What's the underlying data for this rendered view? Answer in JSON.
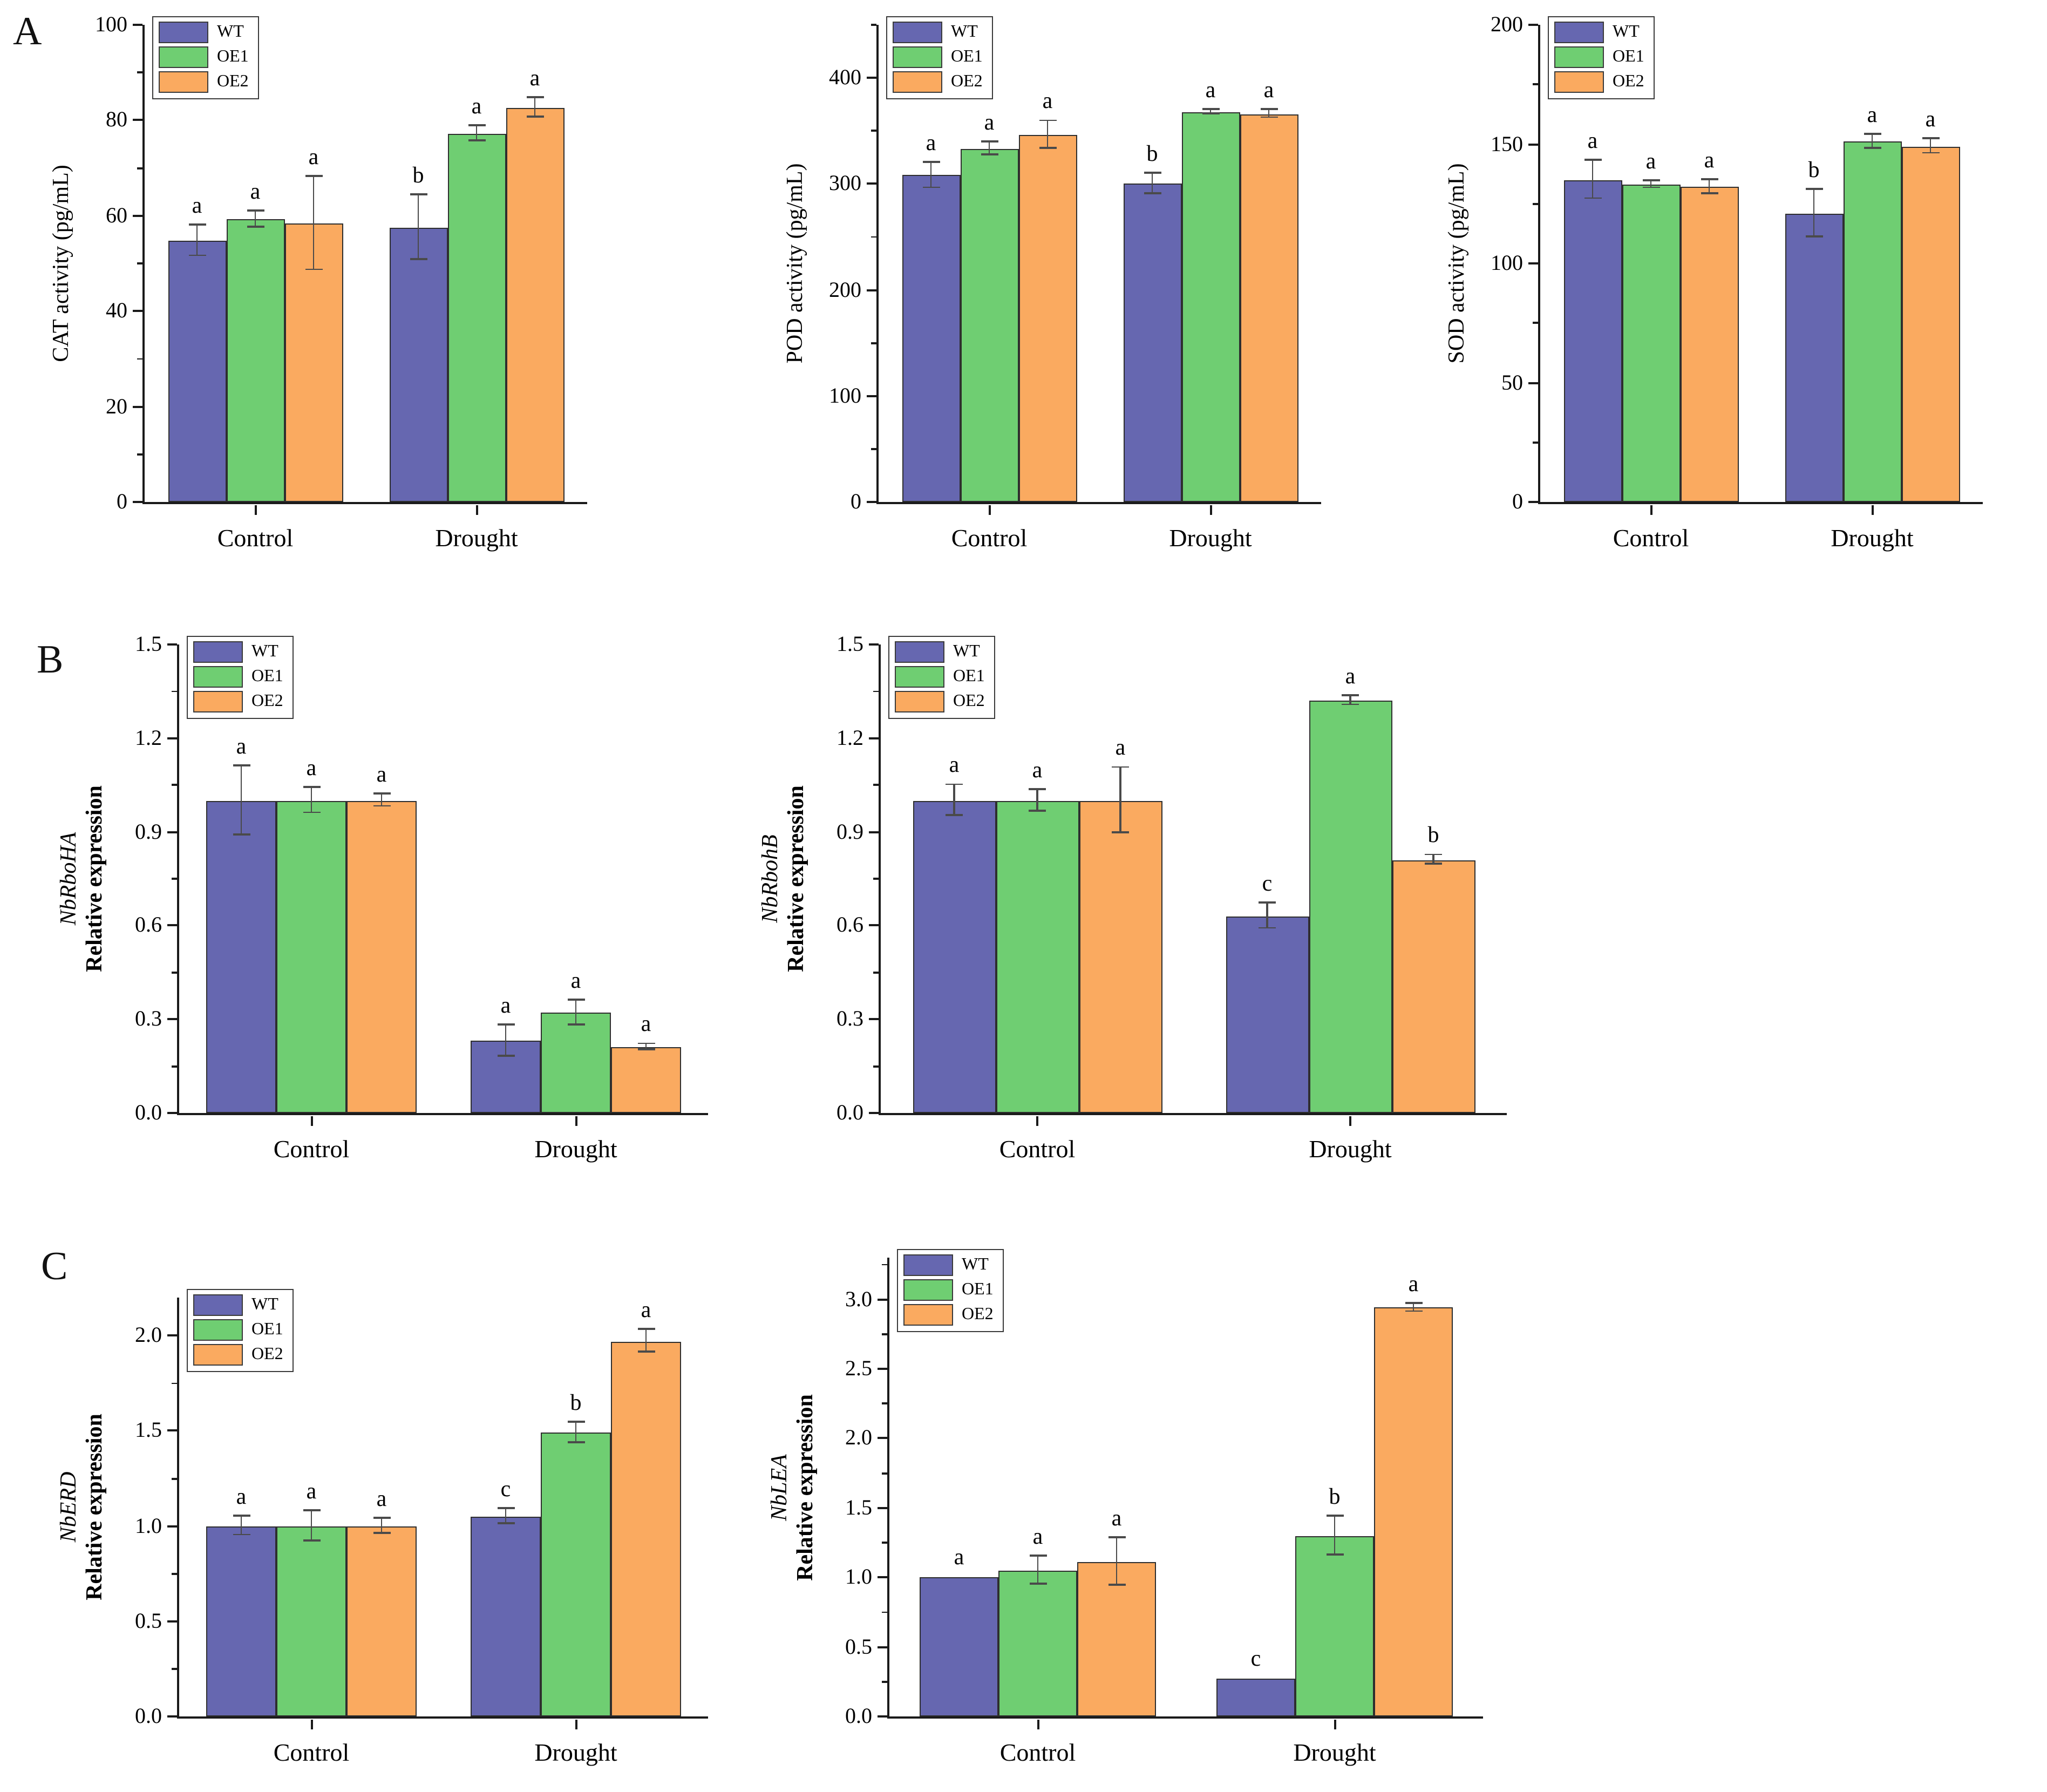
{
  "panels": [
    {
      "label": "A"
    },
    {
      "label": "B"
    },
    {
      "label": "C"
    }
  ],
  "colors": {
    "WT": "#6667B0",
    "OE1": "#6FCE72",
    "OE2": "#FAAA60",
    "bar_border": "#2E2E2E",
    "axis": "#1A1A1A",
    "error_bar": "#4A4A4A"
  },
  "categories": [
    "Control",
    "Drought"
  ],
  "legend_labels": [
    "WT",
    "OE1",
    "OE2"
  ],
  "chart_data": [
    {
      "id": "cat-activity",
      "panel": "A",
      "type": "bar",
      "ylabel": "CAT activity (pg/mL)",
      "ylabel_gene": null,
      "categories": [
        "Control",
        "Drought"
      ],
      "ylim": [
        0,
        100
      ],
      "yticks": [
        0,
        20,
        40,
        60,
        80,
        100
      ],
      "minor_step": 10,
      "tick_decimals": 0,
      "legend_position": "top-left",
      "series": [
        {
          "name": "WT",
          "values": [
            54.7,
            57.5
          ],
          "errors": [
            3.2,
            6.8
          ],
          "letters": [
            "a",
            "b"
          ]
        },
        {
          "name": "OE1",
          "values": [
            59.2,
            77.2
          ],
          "errors": [
            1.7,
            1.6
          ],
          "letters": [
            "a",
            "a"
          ]
        },
        {
          "name": "OE2",
          "values": [
            58.4,
            82.6
          ],
          "errors": [
            9.8,
            2.0
          ],
          "letters": [
            "a",
            "a"
          ]
        }
      ]
    },
    {
      "id": "pod-activity",
      "panel": "A",
      "type": "bar",
      "ylabel": "POD activity (pg/mL)",
      "ylabel_gene": null,
      "categories": [
        "Control",
        "Drought"
      ],
      "ylim": [
        0,
        450
      ],
      "yticks": [
        0,
        100,
        200,
        300,
        400
      ],
      "minor_step": 50,
      "tick_decimals": 0,
      "legend_position": "top-left",
      "series": [
        {
          "name": "WT",
          "values": [
            308,
            300
          ],
          "errors": [
            12,
            10
          ],
          "letters": [
            "a",
            "b"
          ]
        },
        {
          "name": "OE1",
          "values": [
            333,
            368
          ],
          "errors": [
            6,
            2
          ],
          "letters": [
            "a",
            "a"
          ]
        },
        {
          "name": "OE2",
          "values": [
            346,
            366
          ],
          "errors": [
            13,
            4
          ],
          "letters": [
            "a",
            "a"
          ]
        }
      ]
    },
    {
      "id": "sod-activity",
      "panel": "A",
      "type": "bar",
      "ylabel": "SOD activity (pg/mL)",
      "ylabel_gene": null,
      "categories": [
        "Control",
        "Drought"
      ],
      "ylim": [
        0,
        200
      ],
      "yticks": [
        0,
        50,
        100,
        150,
        200
      ],
      "minor_step": 25,
      "tick_decimals": 0,
      "legend_position": "top-left",
      "series": [
        {
          "name": "WT",
          "values": [
            135,
            121
          ],
          "errors": [
            8,
            10
          ],
          "letters": [
            "a",
            "b"
          ]
        },
        {
          "name": "OE1",
          "values": [
            133,
            151
          ],
          "errors": [
            1.5,
            3
          ],
          "letters": [
            "a",
            "a"
          ]
        },
        {
          "name": "OE2",
          "values": [
            132,
            149
          ],
          "errors": [
            3,
            3
          ],
          "letters": [
            "a",
            "a"
          ]
        }
      ]
    },
    {
      "id": "nbrboha-expression",
      "panel": "B",
      "type": "bar",
      "ylabel": "Relative expression",
      "ylabel_gene": "NbRboHA",
      "categories": [
        "Control",
        "Drought"
      ],
      "ylim": [
        0,
        1.5
      ],
      "yticks": [
        0,
        0.3,
        0.6,
        0.9,
        1.2,
        1.5
      ],
      "minor_step": 0.15,
      "tick_decimals": 1,
      "legend_position": "top-left",
      "series": [
        {
          "name": "WT",
          "values": [
            1.0,
            0.23
          ],
          "errors": [
            0.11,
            0.05
          ],
          "letters": [
            "a",
            "a"
          ]
        },
        {
          "name": "OE1",
          "values": [
            1.0,
            0.32
          ],
          "errors": [
            0.04,
            0.04
          ],
          "letters": [
            "a",
            "a"
          ]
        },
        {
          "name": "OE2",
          "values": [
            1.0,
            0.21
          ],
          "errors": [
            0.02,
            0.01
          ],
          "letters": [
            "a",
            "a"
          ]
        }
      ]
    },
    {
      "id": "nbrbohb-expression",
      "panel": "B",
      "type": "bar",
      "ylabel": "Relative expression",
      "ylabel_gene": "NbRbohB",
      "categories": [
        "Control",
        "Drought"
      ],
      "ylim": [
        0,
        1.5
      ],
      "yticks": [
        0,
        0.3,
        0.6,
        0.9,
        1.2,
        1.5
      ],
      "minor_step": 0.15,
      "tick_decimals": 1,
      "legend_position": "top-left",
      "series": [
        {
          "name": "WT",
          "values": [
            1.0,
            0.63
          ],
          "errors": [
            0.05,
            0.04
          ],
          "letters": [
            "a",
            "c"
          ]
        },
        {
          "name": "OE1",
          "values": [
            1.0,
            1.32
          ],
          "errors": [
            0.035,
            0.015
          ],
          "letters": [
            "a",
            "a"
          ]
        },
        {
          "name": "OE2",
          "values": [
            1.0,
            0.81
          ],
          "errors": [
            0.105,
            0.015
          ],
          "letters": [
            "a",
            "b"
          ]
        }
      ]
    },
    {
      "id": "nberd-expression",
      "panel": "C",
      "type": "bar",
      "ylabel": "Relative expression",
      "ylabel_gene": "NbERD",
      "categories": [
        "Control",
        "Drought"
      ],
      "ylim": [
        0,
        2.2
      ],
      "yticks": [
        0,
        0.5,
        1.0,
        1.5,
        2.0
      ],
      "minor_step": 0.25,
      "tick_decimals": 1,
      "legend_position": "top-left",
      "series": [
        {
          "name": "WT",
          "values": [
            1.0,
            1.05
          ],
          "errors": [
            0.05,
            0.04
          ],
          "letters": [
            "a",
            "c"
          ]
        },
        {
          "name": "OE1",
          "values": [
            1.0,
            1.49
          ],
          "errors": [
            0.08,
            0.055
          ],
          "letters": [
            "a",
            "b"
          ]
        },
        {
          "name": "OE2",
          "values": [
            1.0,
            1.97
          ],
          "errors": [
            0.04,
            0.06
          ],
          "letters": [
            "a",
            "a"
          ]
        }
      ]
    },
    {
      "id": "nblea-expression",
      "panel": "C",
      "type": "bar",
      "ylabel": "Relative expression",
      "ylabel_gene": "NbLEA",
      "categories": [
        "Control",
        "Drought"
      ],
      "ylim": [
        0,
        3.3
      ],
      "yticks": [
        0,
        0.5,
        1.0,
        1.5,
        2.0,
        2.5,
        3.0
      ],
      "minor_step": 0.25,
      "tick_decimals": 1,
      "legend_position": "top-left",
      "series": [
        {
          "name": "WT",
          "values": [
            1.0,
            0.27
          ],
          "errors": [
            0,
            0
          ],
          "letters": [
            "a",
            "c"
          ]
        },
        {
          "name": "OE1",
          "values": [
            1.05,
            1.3
          ],
          "errors": [
            0.1,
            0.14
          ],
          "letters": [
            "a",
            "b"
          ]
        },
        {
          "name": "OE2",
          "values": [
            1.11,
            2.94
          ],
          "errors": [
            0.17,
            0.03
          ],
          "letters": [
            "a",
            "a"
          ]
        }
      ]
    }
  ]
}
